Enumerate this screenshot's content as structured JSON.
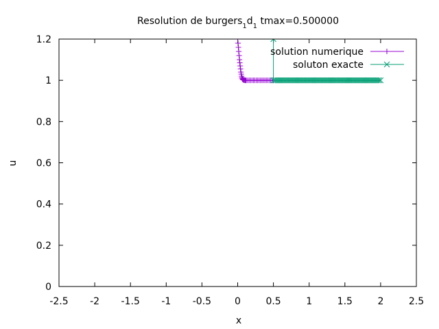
{
  "chart_data": {
    "type": "line",
    "title": {
      "prefix": "Resolution de burgers",
      "sub1": "1",
      "mid": "d",
      "sub2": "1",
      "suffix": " tmax=0.500000"
    },
    "xlabel": "x",
    "ylabel": "u",
    "xlim": [
      -2.5,
      2.5
    ],
    "ylim": [
      0,
      1.2
    ],
    "xticks": [
      -2.5,
      -2,
      -1.5,
      -1,
      -0.5,
      0,
      0.5,
      1,
      1.5,
      2,
      2.5
    ],
    "yticks": [
      0,
      0.2,
      0.4,
      0.6,
      0.8,
      1,
      1.2
    ],
    "xtick_labels": [
      "-2.5",
      "-2",
      "-1.5",
      "-1",
      "-0.5",
      "0",
      "0.5",
      "1",
      "1.5",
      "2",
      "2.5"
    ],
    "ytick_labels": [
      "0",
      "0.2",
      "0.4",
      "0.6",
      "0.8",
      "1",
      "1.2"
    ],
    "grid": false,
    "legend_position": "top-right",
    "series": [
      {
        "name": "solution numerique",
        "color": "#9400d3",
        "marker": "plus",
        "x": [
          0.0,
          0.005,
          0.01,
          0.015,
          0.02,
          0.025,
          0.03,
          0.035,
          0.04,
          0.045,
          0.05,
          0.055,
          0.06,
          0.065,
          0.07,
          0.075,
          0.08,
          0.09,
          0.1,
          0.11,
          0.12,
          0.14,
          0.16,
          0.18,
          0.2,
          0.22,
          0.24,
          0.26,
          0.28,
          0.3,
          0.32,
          0.34,
          0.36,
          0.38,
          0.4,
          0.42,
          0.44,
          0.46,
          0.48,
          0.5
        ],
        "y": [
          1.2,
          1.18,
          1.16,
          1.14,
          1.12,
          1.1,
          1.085,
          1.07,
          1.055,
          1.04,
          1.03,
          1.02,
          1.013,
          1.008,
          1.005,
          1.003,
          1.002,
          1.001,
          1.0,
          1.0,
          1.0,
          1.0,
          1.0,
          1.0,
          1.0,
          1.0,
          1.0,
          1.0,
          1.0,
          1.0,
          1.0,
          1.0,
          1.0,
          1.0,
          1.0,
          1.0,
          1.0,
          1.0,
          1.0,
          1.0
        ]
      },
      {
        "name": "soluton exacte",
        "color": "#009e73",
        "marker": "cross",
        "x": [
          0.5,
          0.5,
          0.52,
          0.54,
          0.56,
          0.58,
          0.6,
          0.62,
          0.64,
          0.66,
          0.68,
          0.7,
          0.72,
          0.74,
          0.76,
          0.78,
          0.8,
          0.82,
          0.84,
          0.86,
          0.88,
          0.9,
          0.92,
          0.94,
          0.96,
          0.98,
          1.0,
          1.02,
          1.04,
          1.06,
          1.08,
          1.1,
          1.12,
          1.14,
          1.16,
          1.18,
          1.2,
          1.22,
          1.24,
          1.26,
          1.28,
          1.3,
          1.32,
          1.34,
          1.36,
          1.38,
          1.4,
          1.42,
          1.44,
          1.46,
          1.48,
          1.5,
          1.52,
          1.54,
          1.56,
          1.58,
          1.6,
          1.62,
          1.64,
          1.66,
          1.68,
          1.7,
          1.72,
          1.74,
          1.76,
          1.78,
          1.8,
          1.82,
          1.84,
          1.86,
          1.88,
          1.9,
          1.92,
          1.94,
          1.96,
          1.98,
          2.0
        ],
        "y": [
          1.2,
          1.0,
          1.0,
          1.0,
          1.0,
          1.0,
          1.0,
          1.0,
          1.0,
          1.0,
          1.0,
          1.0,
          1.0,
          1.0,
          1.0,
          1.0,
          1.0,
          1.0,
          1.0,
          1.0,
          1.0,
          1.0,
          1.0,
          1.0,
          1.0,
          1.0,
          1.0,
          1.0,
          1.0,
          1.0,
          1.0,
          1.0,
          1.0,
          1.0,
          1.0,
          1.0,
          1.0,
          1.0,
          1.0,
          1.0,
          1.0,
          1.0,
          1.0,
          1.0,
          1.0,
          1.0,
          1.0,
          1.0,
          1.0,
          1.0,
          1.0,
          1.0,
          1.0,
          1.0,
          1.0,
          1.0,
          1.0,
          1.0,
          1.0,
          1.0,
          1.0,
          1.0,
          1.0,
          1.0,
          1.0,
          1.0,
          1.0,
          1.0,
          1.0,
          1.0,
          1.0,
          1.0,
          1.0,
          1.0,
          1.0,
          1.0,
          1.0
        ]
      }
    ]
  }
}
